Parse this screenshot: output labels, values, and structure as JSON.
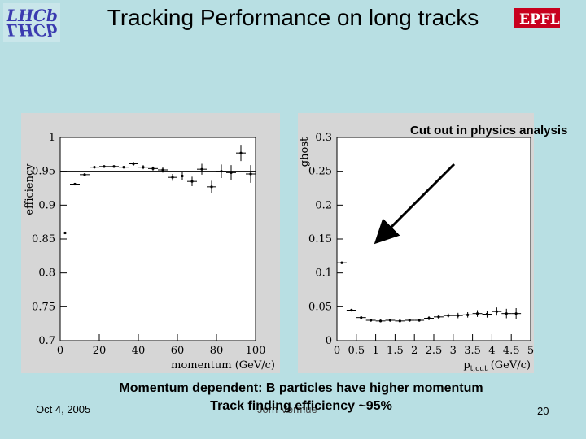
{
  "slide": {
    "title": "Tracking Performance on long tracks",
    "logo_left": "LHCb",
    "logo_right": "EPFL",
    "annotation": "Cut out in physics analysis",
    "footer_line1": "Momentum dependent: B particles have higher momentum",
    "footer_line2": "Track finding efficiency ~95%",
    "date": "Oct 4, 2005",
    "author": "Jörn Vermue",
    "page": "20"
  },
  "chart_data": [
    {
      "type": "scatter",
      "title": "",
      "xlabel": "momentum (GeV/c)",
      "ylabel": "efficiency",
      "xlim": [
        0,
        100
      ],
      "ylim": [
        0.7,
        1.0
      ],
      "xticks": [
        "0",
        "20",
        "40",
        "60",
        "80",
        "100"
      ],
      "yticks": [
        "0.7",
        "0.75",
        "0.8",
        "0.85",
        "0.9",
        "0.95",
        "1"
      ],
      "reference_line": 0.95,
      "x": [
        2.5,
        7.5,
        12.5,
        17.5,
        22.5,
        27.5,
        32.5,
        37.5,
        42.5,
        47.5,
        52.5,
        57.5,
        62.5,
        67.5,
        72.5,
        77.5,
        82.5,
        87.5,
        92.5,
        97.5
      ],
      "y": [
        0.859,
        0.931,
        0.945,
        0.956,
        0.957,
        0.957,
        0.956,
        0.961,
        0.956,
        0.954,
        0.952,
        0.941,
        0.943,
        0.935,
        0.953,
        0.927,
        0.95,
        0.948,
        0.977,
        0.946
      ],
      "yerr": [
        0.001,
        0.001,
        0.002,
        0.002,
        0.002,
        0.002,
        0.002,
        0.003,
        0.003,
        0.003,
        0.004,
        0.005,
        0.006,
        0.007,
        0.008,
        0.009,
        0.01,
        0.011,
        0.012,
        0.013
      ]
    },
    {
      "type": "scatter",
      "title": "",
      "xlabel": "p_t,cut (GeV/c)",
      "ylabel": "ghost",
      "xlim": [
        0,
        5
      ],
      "ylim": [
        0,
        0.3
      ],
      "xticks": [
        "0",
        "0.5",
        "1",
        "1.5",
        "2",
        "2.5",
        "3",
        "3.5",
        "4",
        "4.5",
        "5"
      ],
      "yticks": [
        "0",
        "0.05",
        "0.1",
        "0.15",
        "0.2",
        "0.25",
        "0.3"
      ],
      "x": [
        0.125,
        0.375,
        0.625,
        0.875,
        1.125,
        1.375,
        1.625,
        1.875,
        2.125,
        2.375,
        2.625,
        2.875,
        3.125,
        3.375,
        3.625,
        3.875,
        4.125,
        4.375,
        4.625
      ],
      "y": [
        0.115,
        0.045,
        0.034,
        0.03,
        0.029,
        0.03,
        0.029,
        0.03,
        0.03,
        0.033,
        0.035,
        0.037,
        0.037,
        0.038,
        0.04,
        0.039,
        0.043,
        0.04,
        0.04
      ],
      "yerr": [
        0.002,
        0.002,
        0.002,
        0.002,
        0.002,
        0.002,
        0.002,
        0.002,
        0.002,
        0.003,
        0.003,
        0.003,
        0.004,
        0.004,
        0.005,
        0.005,
        0.006,
        0.007,
        0.008
      ]
    }
  ]
}
